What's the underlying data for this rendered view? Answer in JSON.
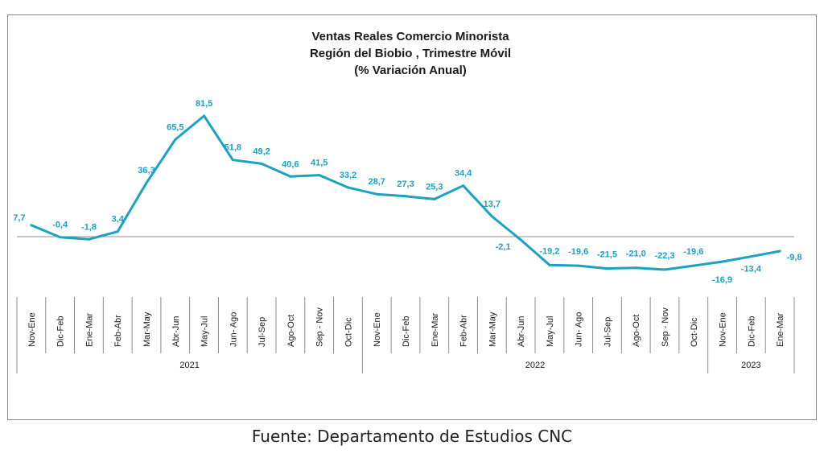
{
  "chart_data": {
    "type": "line",
    "title": [
      "Ventas Reales Comercio Minorista",
      "Región del Biobio , Trimestre Móvil",
      "(% Variación Anual)"
    ],
    "categories": [
      "Nov-Ene",
      "Dic-Feb",
      "Ene-Mar",
      "Feb-Abr",
      "Mar-May",
      "Abr-Jun",
      "May-Jul",
      "Jun- Ago",
      "Jul-Sep",
      "Ago-Oct",
      "Sep - Nov",
      "Oct-Dic",
      "Nov-Ene",
      "Dic-Feb",
      "Ene-Mar",
      "Feb-Abr",
      "Mar-May",
      "Abr-Jun",
      "May-Jul",
      "Jun- Ago",
      "Jul-Sep",
      "Ago-Oct",
      "Sep - Nov",
      "Oct-Dic",
      "Nov-Ene",
      "Dic-Feb",
      "Ene-Mar"
    ],
    "values": [
      7.7,
      -0.4,
      -1.8,
      3.4,
      36.3,
      65.5,
      81.5,
      51.8,
      49.2,
      40.6,
      41.5,
      33.2,
      28.7,
      27.3,
      25.3,
      34.4,
      13.7,
      -2.1,
      -19.2,
      -19.6,
      -21.5,
      -21.0,
      -22.3,
      -19.6,
      -16.9,
      -13.4,
      -9.8
    ],
    "value_labels": [
      "7,7",
      "-0,4",
      "-1,8",
      "3,4",
      "36,3",
      "65,5",
      "81,5",
      "51,8",
      "49,2",
      "40,6",
      "41,5",
      "33,2",
      "28,7",
      "27,3",
      "25,3",
      "34,4",
      "13,7",
      "-2,1",
      "-19,2",
      "-19,6",
      "-21,5",
      "-21,0",
      "-22,3",
      "-19,6",
      "-16,9",
      "-13,4",
      "-9,8"
    ],
    "groups": [
      {
        "label": "2021",
        "count": 12
      },
      {
        "label": "2022",
        "count": 12
      },
      {
        "label": "2023",
        "count": 3
      }
    ],
    "line_color": "#1aa2c4",
    "legend": "none",
    "grid": false
  },
  "source": "Fuente: Departamento de Estudios CNC"
}
